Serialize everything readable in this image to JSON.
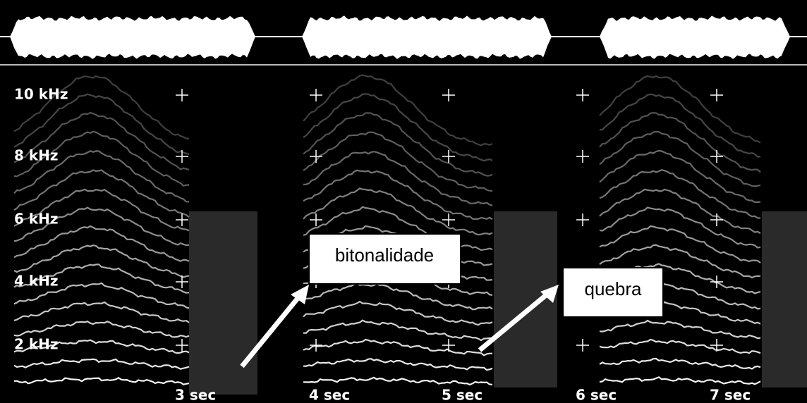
{
  "frequency_labels": [
    "10 kHz",
    "8 kHz",
    "6 kHz",
    "4 kHz",
    "2 kHz"
  ],
  "time_labels": [
    "3 sec",
    "4 sec",
    "5 sec",
    "6 sec",
    "7 sec"
  ],
  "annotations": [
    {
      "label": "bitonalidade"
    },
    {
      "label": "quebra"
    }
  ]
}
